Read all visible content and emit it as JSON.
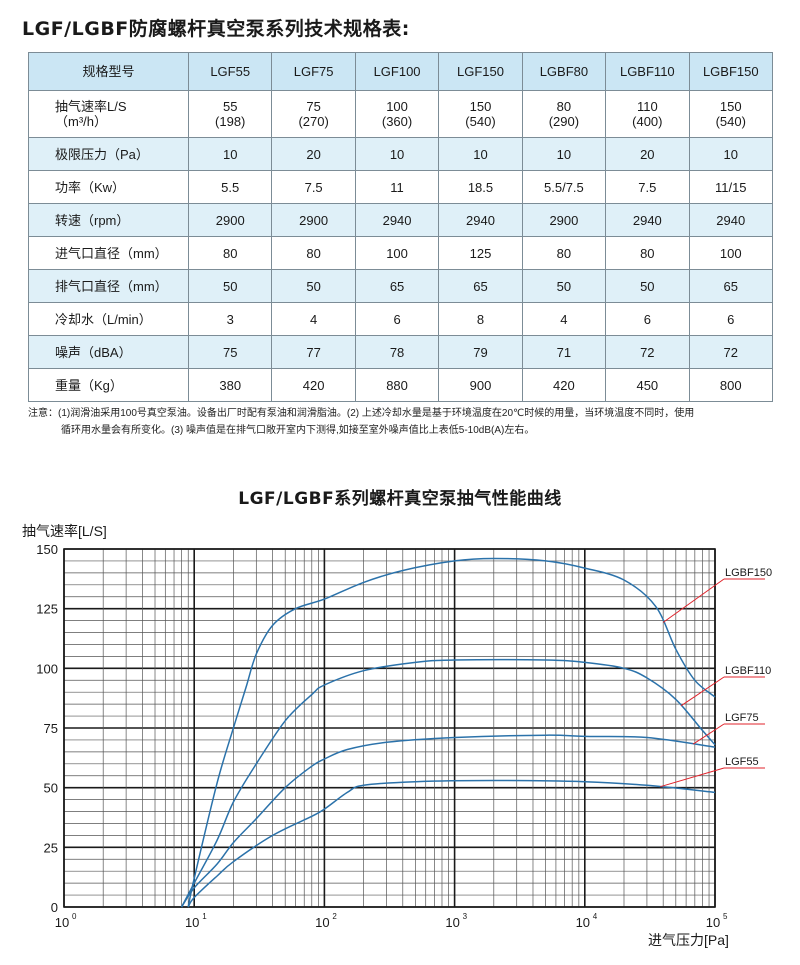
{
  "spec_table": {
    "title": "LGF/LGBF防腐螺杆真空泵系列技术规格表:",
    "header": [
      "规格型号",
      "LGF55",
      "LGF75",
      "LGF100",
      "LGF150",
      "LGBF80",
      "LGBF110",
      "LGBF150"
    ],
    "rows": [
      {
        "label_line1": "抽气速率L/S",
        "label_line2": "（m³/h）",
        "values": [
          [
            "55",
            "(198)"
          ],
          [
            "75",
            "(270)"
          ],
          [
            "100",
            "(360)"
          ],
          [
            "150",
            "(540)"
          ],
          [
            "80",
            "(290)"
          ],
          [
            "110",
            "(400)"
          ],
          [
            "150",
            "(540)"
          ]
        ]
      },
      {
        "label": "极限压力（Pa）",
        "values": [
          "10",
          "20",
          "10",
          "10",
          "10",
          "20",
          "10"
        ]
      },
      {
        "label": "功率（Kw）",
        "values": [
          "5.5",
          "7.5",
          "11",
          "18.5",
          "5.5/7.5",
          "7.5",
          "11/15"
        ]
      },
      {
        "label": "转速（rpm）",
        "values": [
          "2900",
          "2900",
          "2940",
          "2940",
          "2900",
          "2940",
          "2940"
        ]
      },
      {
        "label": "进气口直径（mm）",
        "values": [
          "80",
          "80",
          "100",
          "125",
          "80",
          "80",
          "100"
        ]
      },
      {
        "label": "排气口直径（mm）",
        "values": [
          "50",
          "50",
          "65",
          "65",
          "50",
          "50",
          "65"
        ]
      },
      {
        "label": "冷却水（L/min）",
        "values": [
          "3",
          "4",
          "6",
          "8",
          "4",
          "6",
          "6"
        ]
      },
      {
        "label": "噪声（dBA）",
        "values": [
          "75",
          "77",
          "78",
          "79",
          "71",
          "72",
          "72"
        ]
      },
      {
        "label": "重量（Kg）",
        "values": [
          "380",
          "420",
          "880",
          "900",
          "420",
          "450",
          "800"
        ]
      }
    ],
    "notes_line1": "注意：(1)润滑油采用100号真空泵油。设备出厂时配有泵油和润滑脂油。(2) 上述冷却水量是基于环境温度在20℃时候的用量，当环境温度不同时，使用",
    "notes_line2": "循环用水量会有所变化。(3) 噪声值是在排气口敞开室内下测得,如接至室外噪声值比上表低5-10dB(A)左右。"
  },
  "chart_data": {
    "type": "line",
    "title": "LGF/LGBF系列螺杆真空泵抽气性能曲线",
    "ylabel": "抽气速率[L/S]",
    "xlabel": "进气压力[Pa]",
    "xscale": "log",
    "xlim": [
      1,
      100000
    ],
    "ylim": [
      0,
      150
    ],
    "yticks": [
      0,
      25,
      50,
      75,
      100,
      125,
      150
    ],
    "xticks": [
      {
        "value": 1,
        "base": "10",
        "exp": "0"
      },
      {
        "value": 10,
        "base": "10",
        "exp": "1"
      },
      {
        "value": 100,
        "base": "10",
        "exp": "2"
      },
      {
        "value": 1000,
        "base": "10",
        "exp": "3"
      },
      {
        "value": 10000,
        "base": "10",
        "exp": "4"
      },
      {
        "value": 100000,
        "base": "10",
        "exp": "5"
      }
    ],
    "grid": true,
    "line_color": "#2b72aa",
    "label_line_color": "#e0232b",
    "series": [
      {
        "name": "LGBF150",
        "points": [
          [
            9,
            0
          ],
          [
            10,
            12
          ],
          [
            15,
            52
          ],
          [
            20,
            75
          ],
          [
            25,
            92
          ],
          [
            30,
            106
          ],
          [
            40,
            118
          ],
          [
            60,
            125
          ],
          [
            100,
            129
          ],
          [
            200,
            136
          ],
          [
            400,
            141
          ],
          [
            1000,
            145
          ],
          [
            2000,
            146
          ],
          [
            5000,
            145
          ],
          [
            10000,
            142
          ],
          [
            20000,
            137
          ],
          [
            35000,
            126
          ],
          [
            50000,
            108
          ],
          [
            70000,
            95
          ],
          [
            100000,
            88
          ]
        ]
      },
      {
        "name": "LGBF110",
        "points": [
          [
            8,
            0
          ],
          [
            10,
            10
          ],
          [
            15,
            28
          ],
          [
            20,
            44
          ],
          [
            30,
            60
          ],
          [
            50,
            78
          ],
          [
            80,
            89
          ],
          [
            100,
            93
          ],
          [
            200,
            99
          ],
          [
            500,
            102.5
          ],
          [
            1000,
            103.5
          ],
          [
            5000,
            103.5
          ],
          [
            10000,
            102.5
          ],
          [
            20000,
            100
          ],
          [
            30000,
            96
          ],
          [
            50000,
            87
          ],
          [
            80000,
            74
          ],
          [
            100000,
            68
          ]
        ]
      },
      {
        "name": "LGF75",
        "points": [
          [
            8,
            0
          ],
          [
            10,
            8
          ],
          [
            15,
            18
          ],
          [
            20,
            27
          ],
          [
            30,
            37
          ],
          [
            50,
            50
          ],
          [
            80,
            59
          ],
          [
            100,
            62
          ],
          [
            150,
            66
          ],
          [
            300,
            69
          ],
          [
            1000,
            71
          ],
          [
            5000,
            72
          ],
          [
            10000,
            71.5
          ],
          [
            30000,
            71
          ],
          [
            100000,
            67
          ]
        ]
      },
      {
        "name": "LGF55",
        "points": [
          [
            9,
            0
          ],
          [
            10,
            4
          ],
          [
            15,
            13
          ],
          [
            20,
            19
          ],
          [
            40,
            30
          ],
          [
            80,
            38
          ],
          [
            100,
            41
          ],
          [
            150,
            48
          ],
          [
            200,
            51
          ],
          [
            500,
            52.5
          ],
          [
            2000,
            53
          ],
          [
            10000,
            52.5
          ],
          [
            30000,
            51
          ],
          [
            100000,
            48
          ]
        ]
      }
    ]
  }
}
